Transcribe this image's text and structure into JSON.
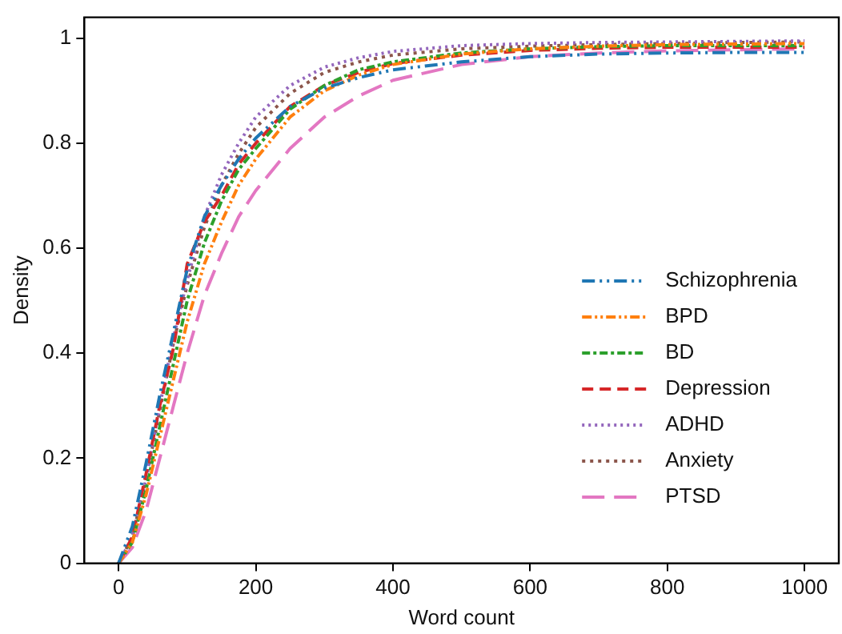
{
  "chart_data": {
    "type": "line",
    "xlabel": "Word count",
    "ylabel": "Density",
    "xlim": [
      -50,
      1050
    ],
    "ylim": [
      0,
      1.04
    ],
    "xticks": [
      0,
      200,
      400,
      600,
      800,
      1000
    ],
    "yticks": [
      0,
      0.2,
      0.4,
      0.6,
      0.8,
      1
    ],
    "grid": false,
    "legend": "bottom right",
    "marker": "none",
    "x": [
      0,
      20,
      40,
      60,
      80,
      100,
      125,
      150,
      175,
      200,
      250,
      300,
      350,
      400,
      500,
      600,
      700,
      800,
      900,
      1000
    ],
    "series": [
      {
        "name": "Schizophrenia",
        "color": "#1f77b4",
        "line_style": "dashed",
        "values": [
          0,
          0.07,
          0.19,
          0.32,
          0.44,
          0.56,
          0.66,
          0.72,
          0.77,
          0.81,
          0.87,
          0.905,
          0.925,
          0.94,
          0.955,
          0.965,
          0.97,
          0.972,
          0.973,
          0.973
        ]
      },
      {
        "name": "BPD",
        "color": "#ff7f0e",
        "line_style": "dashed",
        "values": [
          0,
          0.04,
          0.13,
          0.24,
          0.35,
          0.46,
          0.57,
          0.65,
          0.72,
          0.77,
          0.85,
          0.9,
          0.93,
          0.95,
          0.97,
          0.98,
          0.985,
          0.988,
          0.989,
          0.99
        ]
      },
      {
        "name": "BD",
        "color": "#2ca02c",
        "line_style": "dashed",
        "values": [
          0,
          0.04,
          0.14,
          0.26,
          0.38,
          0.5,
          0.61,
          0.69,
          0.75,
          0.79,
          0.865,
          0.91,
          0.94,
          0.955,
          0.972,
          0.98,
          0.984,
          0.986,
          0.986,
          0.986
        ]
      },
      {
        "name": "Depression",
        "color": "#d62728",
        "line_style": "dashed",
        "values": [
          0,
          0.05,
          0.17,
          0.3,
          0.41,
          0.57,
          0.65,
          0.7,
          0.76,
          0.8,
          0.87,
          0.91,
          0.935,
          0.952,
          0.968,
          0.977,
          0.981,
          0.983,
          0.983,
          0.983
        ]
      },
      {
        "name": "ADHD",
        "color": "#9467bd",
        "line_style": "dotted",
        "values": [
          0,
          0.05,
          0.16,
          0.3,
          0.43,
          0.54,
          0.66,
          0.74,
          0.8,
          0.85,
          0.91,
          0.945,
          0.963,
          0.975,
          0.986,
          0.99,
          0.992,
          0.993,
          0.994,
          0.995
        ]
      },
      {
        "name": "Anxiety",
        "color": "#8c564b",
        "line_style": "dotted",
        "values": [
          0,
          0.05,
          0.16,
          0.29,
          0.42,
          0.53,
          0.64,
          0.72,
          0.78,
          0.83,
          0.895,
          0.935,
          0.955,
          0.968,
          0.98,
          0.985,
          0.988,
          0.99,
          0.992,
          0.993
        ]
      },
      {
        "name": "PTSD",
        "color": "#e377c2",
        "line_style": "dashed",
        "values": [
          0,
          0.03,
          0.1,
          0.2,
          0.3,
          0.4,
          0.51,
          0.59,
          0.66,
          0.71,
          0.79,
          0.85,
          0.89,
          0.92,
          0.95,
          0.965,
          0.972,
          0.976,
          0.978,
          0.98
        ]
      }
    ]
  }
}
